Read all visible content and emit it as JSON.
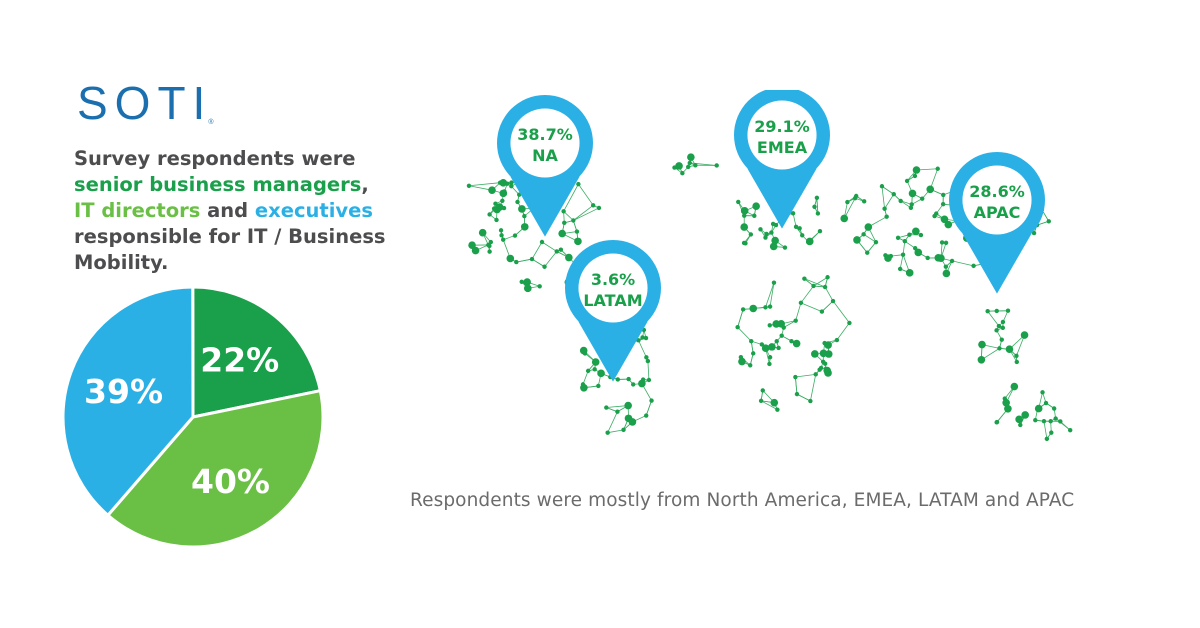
{
  "brand": {
    "logo_text": "SOTI",
    "reg_mark": "®",
    "logo_color": "#1c6fae"
  },
  "headline": {
    "line1": "Survey respondents were",
    "part_managers": "senior business managers",
    "comma": ",",
    "part_directors": "IT directors",
    "and_word": " and ",
    "part_executives": "executives",
    "line_rest": "responsible for IT / Business Mobility."
  },
  "colors": {
    "dark_green": "#1a9f4a",
    "light_green": "#6abf45",
    "blue": "#2bb0e6",
    "text_gray": "#4d4d4f"
  },
  "chart_data": [
    {
      "type": "pie",
      "slices": [
        {
          "label": "22%",
          "value": 22,
          "color": "#1a9f4a"
        },
        {
          "label": "40%",
          "value": 40,
          "color": "#6abf45"
        },
        {
          "label": "39%",
          "value": 39,
          "color": "#2bb0e6"
        }
      ]
    },
    {
      "type": "map",
      "markers": [
        {
          "value": "38.7%",
          "region": "NA"
        },
        {
          "value": "29.1%",
          "region": "EMEA"
        },
        {
          "value": "3.6%",
          "region": "LATAM"
        },
        {
          "value": "28.6%",
          "region": "APAC"
        }
      ]
    }
  ],
  "caption": "Respondents were mostly from North America, EMEA, LATAM and APAC"
}
